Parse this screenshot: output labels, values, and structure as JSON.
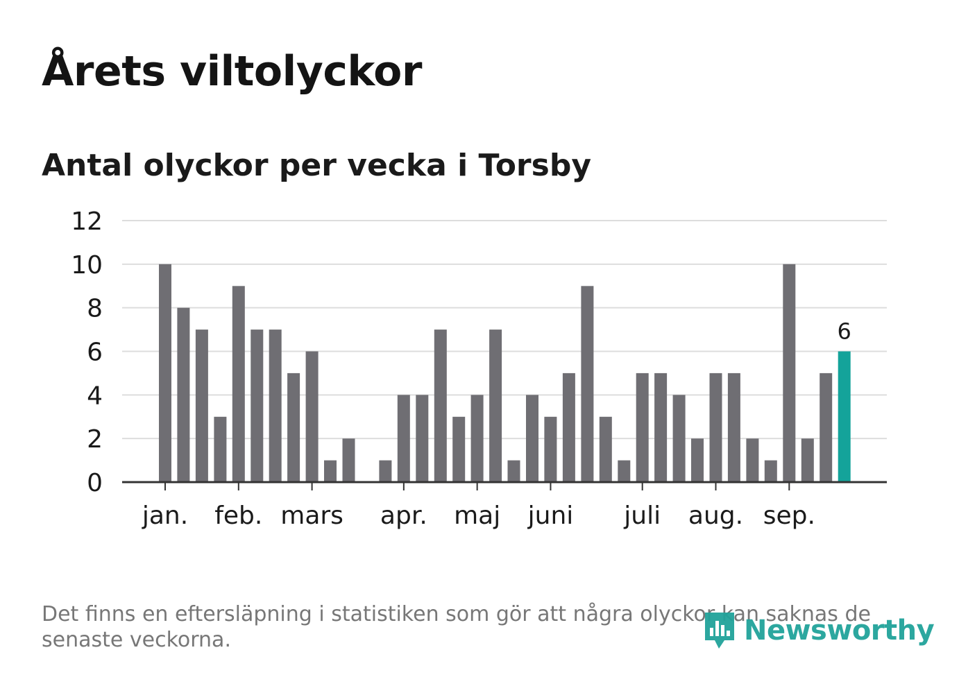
{
  "title": "Årets viltolyckor",
  "subtitle": "Antal olyckor per vecka i Torsby",
  "footnote": "Det finns en eftersläpning i statistiken som gör att några olyckor kan saknas de senaste veckorna.",
  "logo": {
    "text": "Newsworthy",
    "icon": "newsworthy-chart-bubble-icon"
  },
  "colors": {
    "bar": "#6f6e73",
    "highlight": "#14a39a",
    "grid": "#dddddd",
    "axis": "#333333",
    "text": "#1a1a1a"
  },
  "chart_data": {
    "type": "bar",
    "ylim": [
      0,
      12
    ],
    "yticks": [
      0,
      2,
      4,
      6,
      8,
      10,
      12
    ],
    "grid": true,
    "weeks": [
      1,
      2,
      3,
      4,
      5,
      6,
      7,
      8,
      9,
      10,
      11,
      12,
      13,
      14,
      15,
      16,
      17,
      18,
      19,
      20,
      21,
      22,
      23,
      24,
      25,
      26,
      27,
      28,
      29,
      30,
      31,
      32,
      33,
      34,
      35,
      36,
      37,
      38
    ],
    "values": [
      10,
      8,
      7,
      3,
      9,
      7,
      7,
      5,
      6,
      1,
      2,
      null,
      1,
      4,
      4,
      7,
      3,
      4,
      7,
      1,
      4,
      3,
      5,
      9,
      3,
      1,
      5,
      5,
      4,
      2,
      5,
      5,
      2,
      1,
      10,
      2,
      5,
      6
    ],
    "highlight_index": 37,
    "highlight_label": "6",
    "month_labels": [
      {
        "label": "jan.",
        "week": 1
      },
      {
        "label": "feb.",
        "week": 5
      },
      {
        "label": "mars",
        "week": 9
      },
      {
        "label": "apr.",
        "week": 14
      },
      {
        "label": "maj",
        "week": 18
      },
      {
        "label": "juni",
        "week": 22
      },
      {
        "label": "juli",
        "week": 27
      },
      {
        "label": "aug.",
        "week": 31
      },
      {
        "label": "sep.",
        "week": 35
      }
    ]
  }
}
